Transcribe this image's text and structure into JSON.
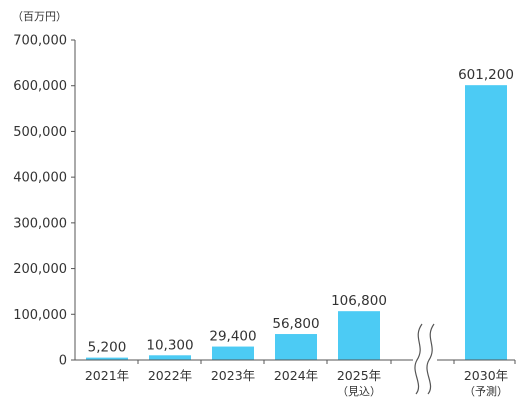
{
  "chart_data": {
    "type": "bar",
    "unit_label": "（百万円）",
    "categories": [
      {
        "label": "2021年",
        "sub": ""
      },
      {
        "label": "2022年",
        "sub": ""
      },
      {
        "label": "2023年",
        "sub": ""
      },
      {
        "label": "2024年",
        "sub": ""
      },
      {
        "label": "2025年",
        "sub": "（見込）"
      },
      {
        "label": "2030年",
        "sub": "（予測）"
      }
    ],
    "values": [
      5200,
      10300,
      29400,
      56800,
      106800,
      601200
    ],
    "data_labels": [
      "5,200",
      "10,300",
      "29,400",
      "56,800",
      "106,800",
      "601,200"
    ],
    "yticks": [
      0,
      100000,
      200000,
      300000,
      400000,
      500000,
      600000,
      700000
    ],
    "ytick_labels": [
      "0",
      "100,000",
      "200,000",
      "300,000",
      "400,000",
      "500,000",
      "600,000",
      "700,000"
    ],
    "ylim": [
      0,
      700000
    ],
    "axis_break_after_index": 4,
    "colors": {
      "bar": "#4ccbf4",
      "axis": "#555555",
      "text": "#333333"
    }
  }
}
